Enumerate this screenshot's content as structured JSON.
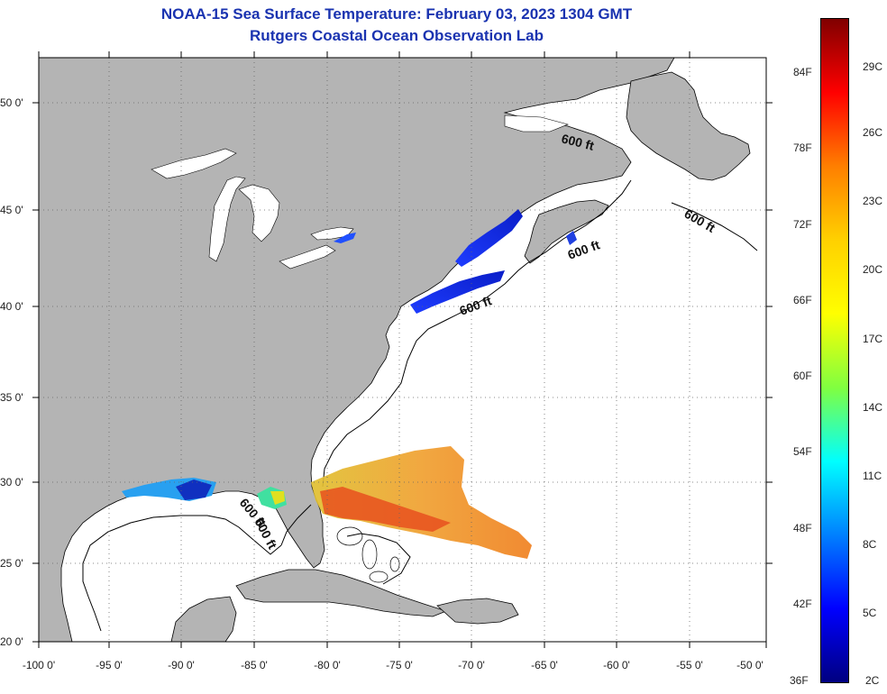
{
  "title": {
    "line1": "NOAA-15 Sea Surface Temperature:  February 03, 2023 1304 GMT",
    "line2": "Rutgers Coastal Ocean Observation Lab"
  },
  "map": {
    "lat_labels": [
      "50 0'",
      "45 0'",
      "40 0'",
      "35 0'",
      "30 0'",
      "25 0'",
      "20 0'"
    ],
    "lon_labels": [
      "-100 0'",
      "-95 0'",
      "-90 0'",
      "-85 0'",
      "-80 0'",
      "-75 0'",
      "-70 0'",
      "-65 0'",
      "-60 0'",
      "-55 0'",
      "-50 0'"
    ],
    "isobath_labels": [
      "600 ft",
      "600 ft",
      "600 ft",
      "600 ft",
      "600 ft",
      "600 ft"
    ],
    "land_color": "#b4b4b4",
    "grid_style": "dotted"
  },
  "colorbar": {
    "fahrenheit": [
      "84F",
      "78F",
      "72F",
      "66F",
      "60F",
      "54F",
      "48F",
      "42F",
      "36F"
    ],
    "celsius": [
      "29C",
      "26C",
      "23C",
      "20C",
      "17C",
      "14C",
      "11C",
      "8C",
      "5C",
      "2C"
    ],
    "colors_top_to_bottom": [
      "#800000",
      "#ff0000",
      "#ff7f00",
      "#ffd000",
      "#ffff00",
      "#80ff40",
      "#00ffff",
      "#0080ff",
      "#0000ff",
      "#000080"
    ]
  }
}
